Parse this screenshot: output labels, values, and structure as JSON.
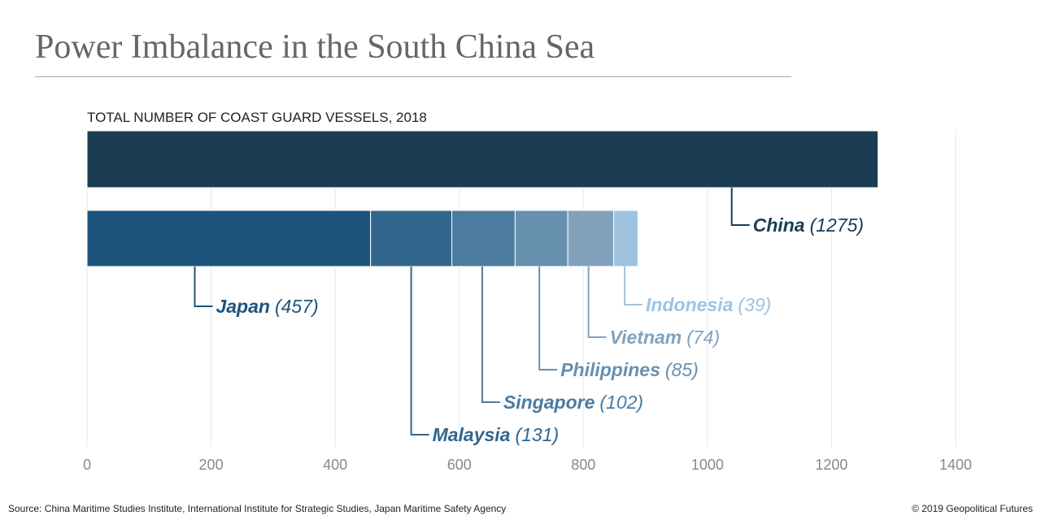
{
  "title": "Power Imbalance in the South China Sea",
  "source": "Source: China Maritime Studies Institute, International Institute for Strategic Studies, Japan Maritime Safety Agency",
  "copyright": "© 2019 Geopolitical Futures",
  "chart_data": {
    "type": "bar",
    "orientation": "horizontal",
    "stacked": true,
    "title": "TOTAL NUMBER OF COAST GUARD VESSELS, 2018",
    "xlim": [
      0,
      1400
    ],
    "x_ticks": [
      0,
      200,
      400,
      600,
      800,
      1000,
      1200,
      1400
    ],
    "grid": true,
    "bars": [
      {
        "segments": [
          {
            "name": "China",
            "value": 1275,
            "label": "(1275)",
            "color": "#1b3d54"
          }
        ]
      },
      {
        "segments": [
          {
            "name": "Japan",
            "value": 457,
            "label": "(457)",
            "color": "#1d547d"
          },
          {
            "name": "Malaysia",
            "value": 131,
            "label": "(131)",
            "color": "#33668d"
          },
          {
            "name": "Singapore",
            "value": 102,
            "label": "(102)",
            "color": "#4c7b9e"
          },
          {
            "name": "Philippines",
            "value": 85,
            "label": "(85)",
            "color": "#6790af"
          },
          {
            "name": "Vietnam",
            "value": 74,
            "label": "(74)",
            "color": "#82a2bc"
          },
          {
            "name": "Indonesia",
            "value": 39,
            "label": "(39)",
            "color": "#9dc3e1"
          }
        ]
      }
    ]
  }
}
